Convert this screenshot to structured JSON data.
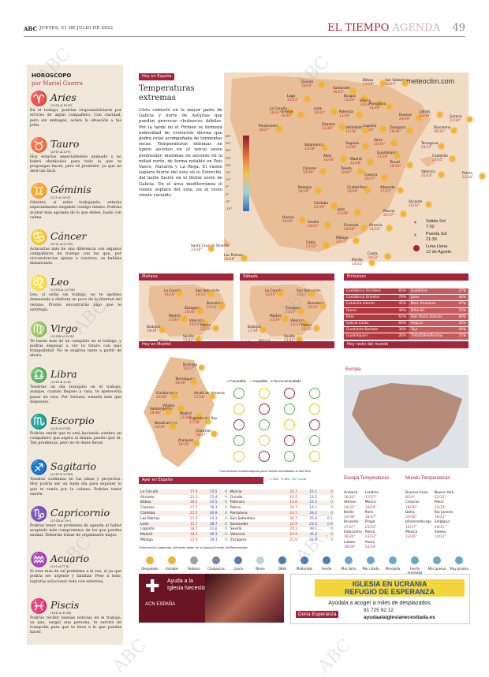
{
  "header": {
    "brand": "ABC",
    "date": "JUEVES, 21 DE JULIO DE 2022",
    "section": "EL TIEMPO",
    "sub": "AGENDA",
    "page": "49"
  },
  "watermark": "ABC",
  "horoscope": {
    "title": "HOROSCOPO",
    "author": "por Mariel Guerra",
    "signs": [
      {
        "name": "Aries",
        "dates": "(20-III al 19-IV)",
        "text": "En el trabajo, podrían responsabilizarte por errores de algún compañero. Con claridad, pero sin ambages, aclara la situación a tus jefes.",
        "glyph": "♈"
      },
      {
        "name": "Tauro",
        "dates": "(20-IV al 20-V)",
        "text": "Hoy estarías especialmente animado y no habrá obstáculos para todo lo que te propongas hacer, pero sé prudente, ya que no será tan fácil.",
        "glyph": "♉"
      },
      {
        "name": "Géminis",
        "dates": "(21-V al 20-VI)",
        "text": "Géminis, si estás trabajando, estarás especialmente exigente contigo mismo. Podrías acabar más agotado de lo que debes, hazlo con calma.",
        "glyph": "♊"
      },
      {
        "name": "Cáncer",
        "dates": "(21-VI al 22-VII)",
        "text": "Aclararías más de una diferencia con algunos compañeros de trabajo con los que, por circunstancias ajenas a vosotros, os habíais distanciado.",
        "glyph": "♋"
      },
      {
        "name": "Leo",
        "dates": "(23-VII al 22-VIII)",
        "text": "Leo, si estás sin trabajo, no te agobies demasiado y disfruta un poco de la libertad del verano. Pronto encontrarás algo que te satisfaga.",
        "glyph": "♌"
      },
      {
        "name": "Virgo",
        "dates": "(23-VIII al 22-IX)",
        "text": "Te harán más de un cumplido en el trabajo, y podrás empezar a ver tu futuro con más tranquilidad. No te exigirás tanto a partir de ahora.",
        "glyph": "♍"
      },
      {
        "name": "Libra",
        "dates": "(23-IX al 22-X)",
        "text": "Tendrías un día tranquilo en el trabajo, aunque, cuando llegues a casa, te apetecería pasar un rato. Por fortuna, estarás más que dispuesto.",
        "glyph": "♎"
      },
      {
        "name": "Escorpio",
        "dates": "(23-X al 21-XI)",
        "text": "Podrías sentir que te está haciendo sombra un compañero que aspira al mismo puesto que tú. Ten prudencia, pero no te dejes llevar.",
        "glyph": "♏"
      },
      {
        "name": "Sagitario",
        "dates": "(22-XI al 20-XII)",
        "text": "Tendrás confianza en tus ideas y proyectos. Hoy podría ser un buen día para exponer lo que te ronda por la cabeza. Podrías tener suerte.",
        "glyph": "♐"
      },
      {
        "name": "Capricornio",
        "dates": "(21-XII al 19-I)",
        "text": "Podrías tener un problema de agenda al haber aceptado más compromisos de los que puedes asumir. Deberías tratar de organizarte mejor.",
        "glyph": "♑"
      },
      {
        "name": "Acuario",
        "dates": "(20-I al 17-II)",
        "text": "Si eres más de un problema a la vez, sí ya que podría ser urgente y familiar. Pese a todo, lograrás solucionar todo con entereza.",
        "glyph": "♒"
      },
      {
        "name": "Piscis",
        "dates": "(18-II al 19-III)",
        "text": "Podrías recibir buenas noticias en el trabajo, ya que, surgió una persona, te servirá de trampolín para que te lleve a lo que puedes hacer.",
        "glyph": "♓"
      }
    ]
  },
  "today": {
    "tag": "Hoy en España",
    "title": "Temperaturas extremas",
    "text": "Cielo cubierto en la mayor parte de Galicia y norte de Asturias que pueden provocar chubascos débiles. Por la tarde en el Pirineo se formará nubosidad de evolución diurna que podrá estar acompañada de tormentas secas. Temperaturas mínimas en ligero ascenso en el tercio oeste peninsular, máximas en ascenso en la mitad norte, de forma notable en País Vasco, Navarra y La Rioja. El viento soplará fuerte del este en el Estrecho, del norte fuerte en el litoral oeste de Galicia. En el área mediterránea el viento soplará del este, en el resto viento variable.",
    "credit": "meteoclim.com",
    "scale": [
      "40°",
      "35°",
      "30°",
      "25°",
      "20°",
      "15°",
      "10°",
      "5°",
      "0°",
      "-5°",
      "-10°"
    ],
    "cities": [
      {
        "n": "La Coruña",
        "t": "16/22°"
      },
      {
        "n": "Oviedo",
        "t": "16/24°"
      },
      {
        "n": "Santander",
        "t": "16/25°"
      },
      {
        "n": "Bilbao",
        "t": "17/28°"
      },
      {
        "n": "San Sebastián",
        "t": "16/25°"
      },
      {
        "n": "Lugo",
        "t": "15/23°"
      },
      {
        "n": "Pontevedra",
        "t": "16/27°"
      },
      {
        "n": "Orense",
        "t": "16/33°"
      },
      {
        "n": "León",
        "t": "16/34°"
      },
      {
        "n": "Palencia",
        "t": "13/36°"
      },
      {
        "n": "Burgos",
        "t": "11/34°"
      },
      {
        "n": "Vitoria",
        "t": "14/34°"
      },
      {
        "n": "Pamplona",
        "t": "14/39°"
      },
      {
        "n": "Logroño",
        "t": "17/36°"
      },
      {
        "n": "Huesca",
        "t": "20/39°"
      },
      {
        "n": "Lérida",
        "t": "23/39°"
      },
      {
        "n": "Gerona",
        "t": "22/34°"
      },
      {
        "n": "Barcelona",
        "t": "26/33°"
      },
      {
        "n": "Zaragoza",
        "t": "18/38°"
      },
      {
        "n": "Soria",
        "t": "15/34°"
      },
      {
        "n": "Valladolid",
        "t": "14/38°"
      },
      {
        "n": "Zamora",
        "t": "13/38°"
      },
      {
        "n": "Segovia",
        "t": "12/39°"
      },
      {
        "n": "Salamanca",
        "t": "13/38°"
      },
      {
        "n": "Ávila",
        "t": "14/36°"
      },
      {
        "n": "Guadalajara",
        "t": "22/39°"
      },
      {
        "n": "Madrid",
        "t": "22/38°"
      },
      {
        "n": "Teruel",
        "t": "16/34°"
      },
      {
        "n": "Tarragona",
        "t": "24/32°"
      },
      {
        "n": "Castellón",
        "t": "23/35°"
      },
      {
        "n": "Cáceres",
        "t": "19/39°"
      },
      {
        "n": "Toledo",
        "t": "18/40°"
      },
      {
        "n": "Cuenca",
        "t": "20/37°"
      },
      {
        "n": "Valencia",
        "t": "25/33°"
      },
      {
        "n": "Palma",
        "t": "23/34°"
      },
      {
        "n": "Badajoz",
        "t": "18/39°"
      },
      {
        "n": "Ciudad Real",
        "t": "19/39°"
      },
      {
        "n": "Albacete",
        "t": "17/37°"
      },
      {
        "n": "Alicante",
        "t": "24/32°"
      },
      {
        "n": "Córdoba",
        "t": "22/39°"
      },
      {
        "n": "Jaén",
        "t": "23/38°"
      },
      {
        "n": "Murcia",
        "t": "22/37°"
      },
      {
        "n": "Huelva",
        "t": "20/35°"
      },
      {
        "n": "Sevilla",
        "t": "20/41°"
      },
      {
        "n": "Granada",
        "t": "24/36°"
      },
      {
        "n": "Almería",
        "t": "24/32°"
      },
      {
        "n": "Málaga",
        "t": "22/31°"
      },
      {
        "n": "Cádiz",
        "t": "21/32°"
      },
      {
        "n": "Ceuta",
        "t": "20/32°"
      },
      {
        "n": "Melilla",
        "t": "24/32°"
      },
      {
        "n": "Santa Cruz de Tenerife",
        "t": "22/28°"
      },
      {
        "n": "Las Palmas",
        "t": "20/28°"
      }
    ],
    "sun": {
      "rise_label": "Salida Sol",
      "rise": "7:02",
      "set_label": "Puesta Sol",
      "set": "21:39",
      "moon_label": "Luna Llena",
      "moon": "12 de Agosto"
    }
  },
  "tomorrow": {
    "tag": "Mañana",
    "cities": [
      {
        "n": "La Coruña",
        "t": "14/18°"
      },
      {
        "n": "San Sebastián",
        "t": "19/31°"
      },
      {
        "n": "Zaragoza",
        "t": "20/36°"
      },
      {
        "n": "Madrid",
        "t": "21/40°"
      },
      {
        "n": "Barcelona",
        "t": "25/33°"
      },
      {
        "n": "Badajoz",
        "t": "19/39°"
      },
      {
        "n": "Valencia",
        "t": "24/33°"
      },
      {
        "n": "Palma",
        "t": "23/35°"
      },
      {
        "n": "Sevilla",
        "t": "23/42°"
      },
      {
        "n": "Málaga",
        "t": "24/32°"
      },
      {
        "n": "S.C.Tenerife",
        "t": "22/28°"
      }
    ]
  },
  "saturday": {
    "tag": "Sábado",
    "cities": [
      {
        "n": "La Coruña",
        "t": "13/26°"
      },
      {
        "n": "San Sebastián",
        "t": "19/27°"
      },
      {
        "n": "Zaragoza",
        "t": "21/37°"
      },
      {
        "n": "Madrid",
        "t": "21/39°"
      },
      {
        "n": "Barcelona",
        "t": "25/33°"
      },
      {
        "n": "Badajoz",
        "t": "17/39°"
      },
      {
        "n": "Valencia",
        "t": "23/33°"
      },
      {
        "n": "Palma",
        "t": "23/35°"
      },
      {
        "n": "Sevilla",
        "t": "23/42°"
      },
      {
        "n": "Málaga",
        "t": "24/31°"
      },
      {
        "n": "S.C.Tenerife",
        "t": "23/28°"
      }
    ]
  },
  "embalses": {
    "tag": "Embalses",
    "rows": [
      [
        "Cantábrico Occident.",
        "65%",
        "Guadiana",
        "27%"
      ],
      [
        "Cantábrico Oriental",
        "79%",
        "Júcar",
        "44%"
      ],
      [
        "Cataluña Interior",
        "45%",
        "Med. Andaluza",
        "47%"
      ],
      [
        "Duero",
        "46%",
        "Miño-Sil",
        "53%"
      ],
      [
        "Ebro",
        "61%",
        "País Vasco Interior",
        "89%"
      ],
      [
        "Galicia Costa",
        "66%",
        "Segura",
        "42%"
      ],
      [
        "Guadalete-Barbate",
        "30%",
        "Tajo",
        "44%"
      ],
      [
        "Guadalquivir",
        "26%",
        "Tinto/Odiel/Piedras",
        "71%"
      ]
    ]
  },
  "madrid": {
    "tag": "Hoy en Madrid",
    "legend": [
      "Favorable",
      "Aceptable",
      "No recomendado"
    ],
    "note": "*Condiciones meteorológicas para realizar actividades al aire libre",
    "cities": [
      {
        "n": "Buitrago",
        "t": "16/37°"
      },
      {
        "n": "Torrelaguna",
        "t": "18/38°"
      },
      {
        "n": "Guadarrama",
        "t": "20/36°"
      },
      {
        "n": "Alcalá de Henares",
        "t": "17/38°"
      },
      {
        "n": "Villalba",
        "t": "17/36°"
      },
      {
        "n": "Valdemorillo",
        "t": "19/38°"
      },
      {
        "n": "Madrid",
        "t": "22/38°"
      },
      {
        "n": "Arganda del Rey",
        "t": "17/38°"
      },
      {
        "n": "Navalcarnero",
        "t": "20/39°"
      },
      {
        "n": "Chinchón",
        "t": "18/37°"
      },
      {
        "n": "Aranjuez",
        "t": "20/39°"
      }
    ]
  },
  "world": {
    "tag": "Hoy resto del mundo",
    "label": "Europa"
  },
  "yesterday": {
    "tag": "Ayer en España",
    "cols": [
      "°C Máx",
      "°C Mín",
      "l/m² Lluvia"
    ],
    "rows": [
      [
        "La Coruña",
        "17.4",
        "15.5",
        "0",
        "Murcia",
        "22.7",
        "15.1",
        "0"
      ],
      [
        "Alicante",
        "21.3",
        "15.4",
        "0",
        "Oviedo",
        "15.5",
        "13.2",
        "0"
      ],
      [
        "Bilbao",
        "16.2",
        "15.5",
        "0",
        "Palencia",
        "13.6",
        "12.1",
        "0"
      ],
      [
        "Cáceres",
        "17.7",
        "16.3",
        "0",
        "Palma",
        "24.7",
        "14.1",
        "0"
      ],
      [
        "Córdoba",
        "21.5",
        "40.8",
        "0",
        "Pamplona",
        "16.1",
        "28.3",
        "0"
      ],
      [
        "Las Palmas",
        "21.5",
        "24.3",
        "0",
        "San Sebastián",
        "20.7",
        "25.4",
        "6.1"
      ],
      [
        "León",
        "11.7",
        "28.7",
        "0",
        "Santander",
        "16.9",
        "23.3",
        "0.6"
      ],
      [
        "Logroño",
        "18.7",
        "31.6",
        "0",
        "Sevilla",
        "20.1",
        "39.1",
        "0"
      ],
      [
        "Madrid",
        "18.3",
        "36.3",
        "0",
        "Valencia",
        "23.4",
        "32.4",
        "0"
      ],
      [
        "Málaga",
        "22.0",
        "28.3",
        "0",
        "Zaragoza",
        "21.0",
        "33.8",
        "0"
      ]
    ],
    "note": "*Información elaborada utilizando datos de la Agencia Estatal de Meteorología"
  },
  "europe": {
    "title": "Europa Temperaturas",
    "rows": [
      [
        "Andorra",
        "16/26°",
        "Londres",
        "17/27°"
      ],
      [
        "Atenas",
        "24/32°",
        "Moscú",
        "14/24°"
      ],
      [
        "Berlín",
        "23/38°",
        "París",
        "18/27°"
      ],
      [
        "Bruselas",
        "17/27°",
        "Praga",
        "23/33°"
      ],
      [
        "Estocolmo",
        "16/26°",
        "Roma",
        "23/33°"
      ],
      [
        "Lisboa",
        "18/29°",
        "Viena",
        "24/34°"
      ]
    ]
  },
  "worldtemps": {
    "title": "Mundo Temperaturas",
    "rows": [
      [
        "Buenos Aires",
        "8/19°",
        "Nueva York",
        "22/33°"
      ],
      [
        "Caracas",
        "18/26°",
        "Pekín",
        "22/33°"
      ],
      [
        "Doha",
        "33/36°",
        "Río Janeiro",
        "16/22°"
      ],
      [
        "Johannesburgo",
        "12/17°",
        "Singapur",
        "26/31°"
      ],
      [
        "México",
        "13/26°",
        "Sidney",
        "10/13°"
      ]
    ]
  },
  "legend": [
    "Despejado",
    "Variable",
    "Nuboso",
    "Chubascos",
    "Lluvia",
    "Nieve",
    "Débil",
    "Moderado",
    "Fuerte",
    "Mar llana",
    "Mar rizada",
    "Marejada",
    "Fuerte marejada",
    "Mar gruesa",
    "Muy gruesa"
  ],
  "ad1": {
    "line1": "Ayuda a la",
    "line2": "Iglesia Necesitada",
    "brand": "ACN ESPAÑA"
  },
  "ad2": {
    "title1": "IGLESIA EN UCRANIA",
    "title2": "REFUGIO DE ESPERANZA",
    "sub": "Ayúdala a acoger a miles de desplazados.",
    "btn": "Dona Esperanza",
    "phone": "91 725 92 12",
    "web": "ayudaalaiglesianecesitada.es"
  },
  "colors": {
    "accent": "#a6243a",
    "land": "#e9bd95",
    "sea": "#f1dbc4",
    "panel": "#efe8da"
  }
}
